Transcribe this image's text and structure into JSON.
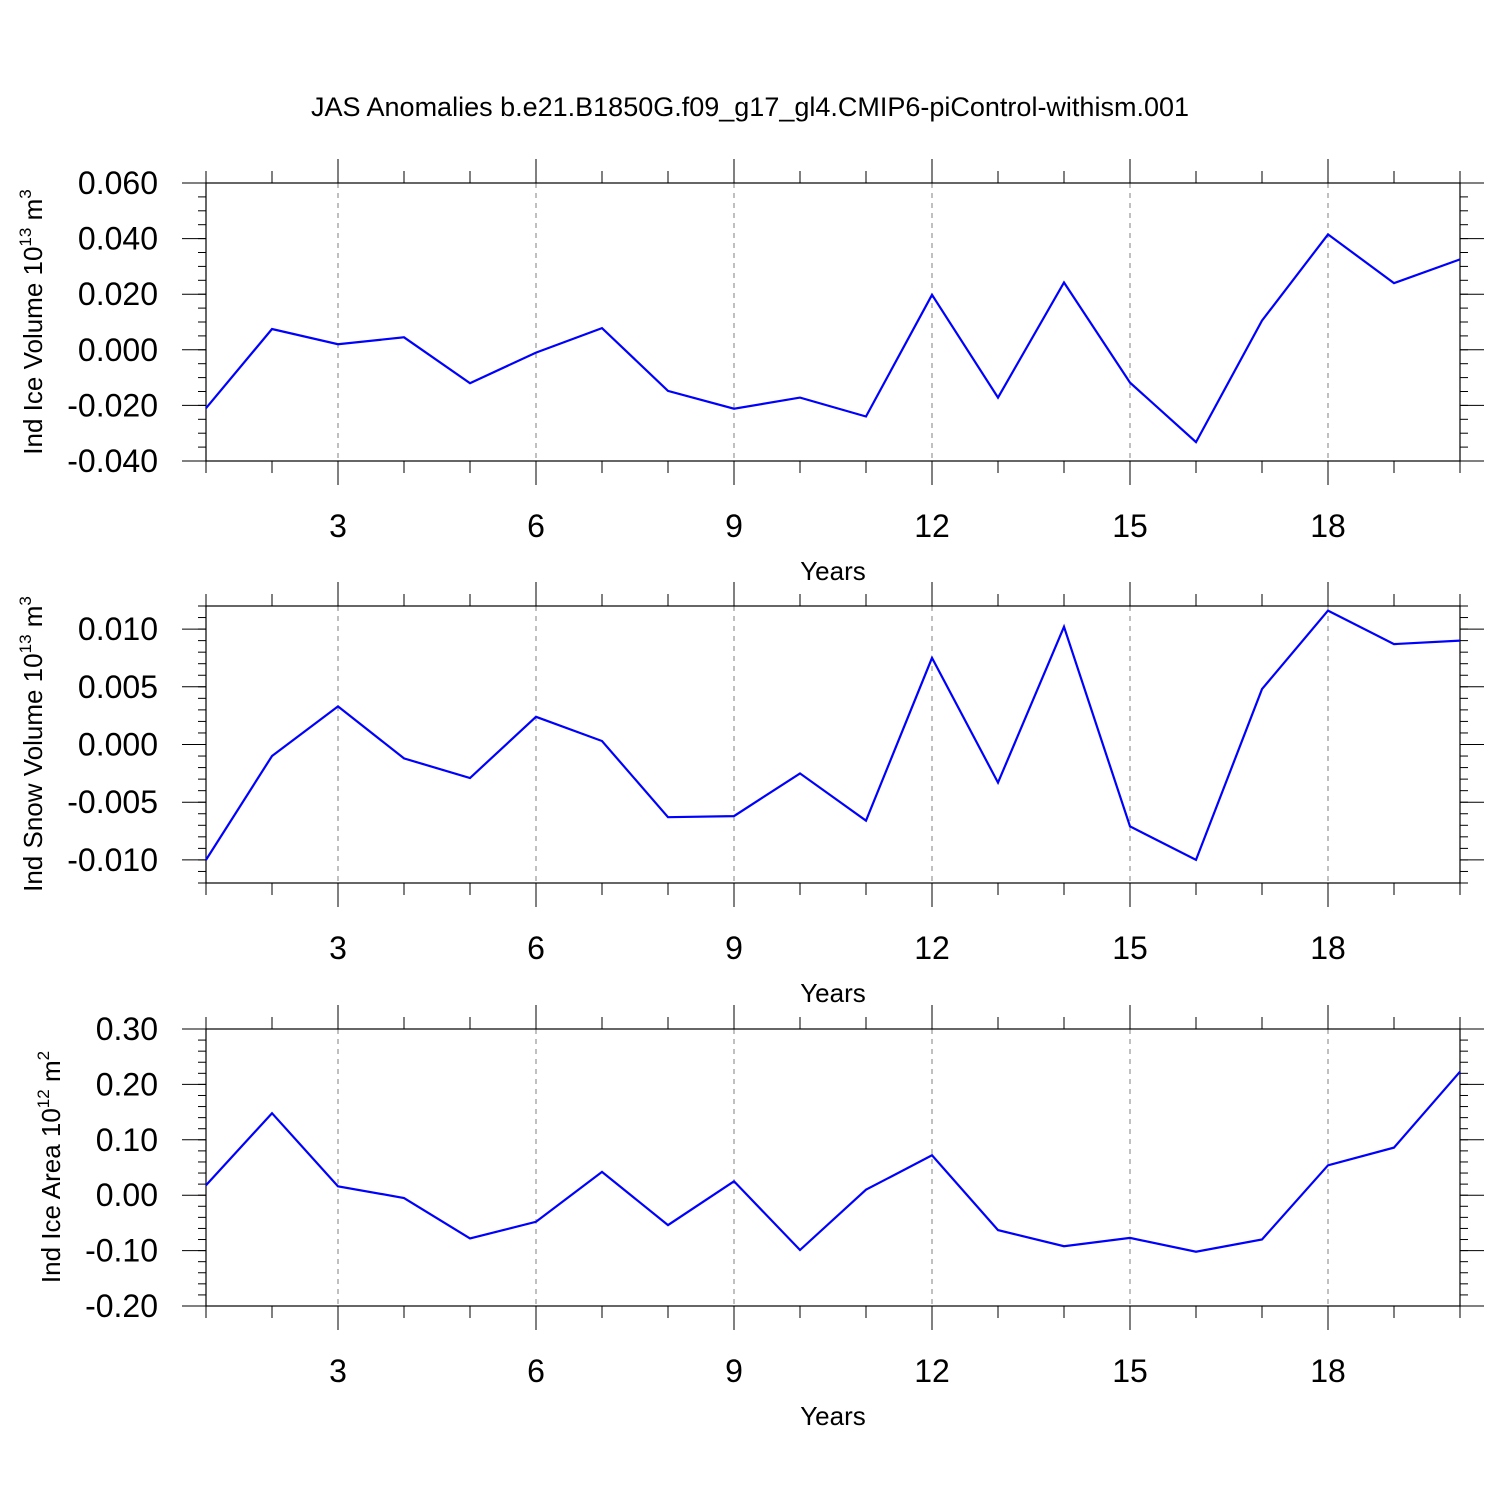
{
  "title": "JAS Anomalies b.e21.B1850G.f09_g17_gl4.CMIP6-piControl-withism.001",
  "colors": {
    "line": "#0000ff",
    "axis": "#000000",
    "grid": "#808080",
    "background": "#ffffff"
  },
  "chart_data": [
    {
      "type": "line",
      "xlabel": "Years",
      "ylabel": {
        "base": "Ind Ice Volume 10",
        "exp1": "13",
        "unit": " m",
        "exp2": "3"
      },
      "xlim": [
        1,
        20
      ],
      "ylim": [
        -0.04,
        0.06
      ],
      "x_ticks": [
        3,
        6,
        9,
        12,
        15,
        18
      ],
      "x_tick_labels": [
        "3",
        "6",
        "9",
        "12",
        "15",
        "18"
      ],
      "y_ticks": [
        -0.04,
        -0.02,
        0.0,
        0.02,
        0.04,
        0.06
      ],
      "y_tick_labels": [
        "-0.040",
        "-0.020",
        "0.000",
        "0.020",
        "0.040",
        "0.060"
      ],
      "y_minor_step": 0.005,
      "grid": "vertical dashed at major x ticks",
      "x": [
        1,
        2,
        3,
        4,
        5,
        6,
        7,
        8,
        9,
        10,
        11,
        12,
        13,
        14,
        15,
        16,
        17,
        18,
        19,
        20
      ],
      "series": [
        {
          "values": [
            -0.021,
            0.0075,
            0.002,
            0.0045,
            -0.012,
            -0.001,
            0.0078,
            -0.0148,
            -0.0212,
            -0.0172,
            -0.024,
            0.0198,
            -0.0172,
            0.0242,
            -0.0118,
            -0.0332,
            0.0105,
            0.0415,
            0.024,
            0.0325
          ]
        }
      ]
    },
    {
      "type": "line",
      "xlabel": "Years",
      "ylabel": {
        "base": "Ind Snow Volume 10",
        "exp1": "13",
        "unit": " m",
        "exp2": "3"
      },
      "xlim": [
        1,
        20
      ],
      "ylim": [
        -0.012,
        0.012
      ],
      "x_ticks": [
        3,
        6,
        9,
        12,
        15,
        18
      ],
      "x_tick_labels": [
        "3",
        "6",
        "9",
        "12",
        "15",
        "18"
      ],
      "y_ticks": [
        -0.01,
        -0.005,
        0.0,
        0.005,
        0.01
      ],
      "y_tick_labels": [
        "-0.010",
        "-0.005",
        "0.000",
        "0.005",
        "0.010"
      ],
      "y_minor_step": 0.001,
      "grid": "vertical dashed at major x ticks",
      "x": [
        1,
        2,
        3,
        4,
        5,
        6,
        7,
        8,
        9,
        10,
        11,
        12,
        13,
        14,
        15,
        16,
        17,
        18,
        19,
        20
      ],
      "series": [
        {
          "values": [
            -0.01,
            -0.001,
            0.0033,
            -0.0012,
            -0.0029,
            0.0024,
            0.0003,
            -0.0063,
            -0.0062,
            -0.0025,
            -0.0066,
            0.0075,
            -0.0033,
            0.0102,
            -0.0071,
            -0.01,
            0.0048,
            0.0116,
            0.0087,
            0.009
          ]
        }
      ]
    },
    {
      "type": "line",
      "xlabel": "Years",
      "ylabel": {
        "base": "Ind Ice Area 10",
        "exp1": "12",
        "unit": " m",
        "exp2": "2"
      },
      "xlim": [
        1,
        20
      ],
      "ylim": [
        -0.2,
        0.3
      ],
      "x_ticks": [
        3,
        6,
        9,
        12,
        15,
        18
      ],
      "x_tick_labels": [
        "3",
        "6",
        "9",
        "12",
        "15",
        "18"
      ],
      "y_ticks": [
        -0.2,
        -0.1,
        0.0,
        0.1,
        0.2,
        0.3
      ],
      "y_tick_labels": [
        "-0.20",
        "-0.10",
        "0.00",
        "0.10",
        "0.20",
        "0.30"
      ],
      "y_minor_step": 0.02,
      "grid": "vertical dashed at major x ticks",
      "x": [
        1,
        2,
        3,
        4,
        5,
        6,
        7,
        8,
        9,
        10,
        11,
        12,
        13,
        14,
        15,
        16,
        17,
        18,
        19,
        20
      ],
      "series": [
        {
          "values": [
            0.018,
            0.148,
            0.016,
            -0.005,
            -0.078,
            -0.048,
            0.042,
            -0.054,
            0.025,
            -0.099,
            0.01,
            0.072,
            -0.063,
            -0.092,
            -0.077,
            -0.102,
            -0.08,
            0.054,
            0.086,
            0.223
          ]
        }
      ]
    }
  ]
}
